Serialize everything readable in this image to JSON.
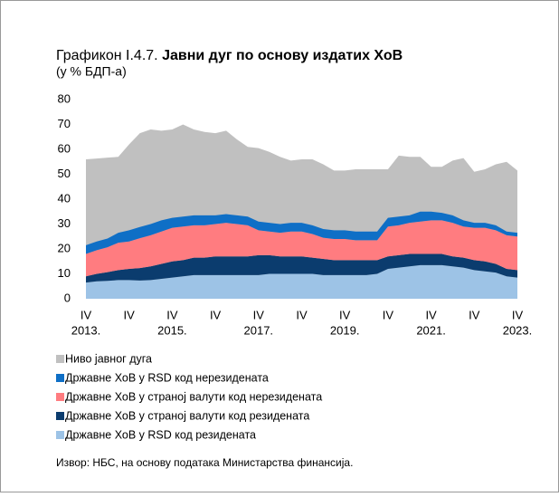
{
  "chart_data": {
    "type": "stacked_area",
    "title_prefix": "Графикон I.4.7.",
    "title": "Јавни дуг по основу издатих ХоВ",
    "subtitle": "(у % БДП-а)",
    "source": "Извор: НБС, на основу података Министарства финансија.",
    "categories": [
      "IV",
      null,
      null,
      null,
      "IV",
      null,
      null,
      null,
      "IV",
      null,
      null,
      null,
      "IV",
      null,
      null,
      null,
      "IV",
      null,
      null,
      null,
      "IV",
      null,
      null,
      null,
      "IV",
      null,
      null,
      null,
      "IV",
      null,
      null,
      null,
      "IV",
      null,
      null,
      null,
      "IV",
      null,
      null,
      null,
      "IV"
    ],
    "year_labels": [
      "2013.",
      null,
      null,
      null,
      null,
      null,
      null,
      null,
      "2015.",
      null,
      null,
      null,
      null,
      null,
      null,
      null,
      "2017.",
      null,
      null,
      null,
      null,
      null,
      null,
      null,
      "2019.",
      null,
      null,
      null,
      null,
      null,
      null,
      null,
      "2021.",
      null,
      null,
      null,
      null,
      null,
      null,
      null,
      "2023."
    ],
    "ylim": [
      0,
      80
    ],
    "yticks": [
      0,
      10,
      20,
      30,
      40,
      50,
      60,
      70,
      80
    ],
    "series": [
      {
        "name": "Ниво јавног дуга",
        "color": "#c0c0c0",
        "stack": false,
        "values": [
          56,
          56.3,
          56.7,
          57,
          62,
          66.5,
          68,
          67.5,
          68,
          70,
          68,
          67,
          66.5,
          67.5,
          64,
          61,
          60.5,
          59,
          57,
          55.5,
          56,
          56,
          54,
          51.5,
          51.5,
          52,
          52,
          52,
          52,
          57.5,
          57,
          57,
          53,
          53,
          55.5,
          56.5,
          51,
          52,
          54,
          55,
          51.5
        ]
      },
      {
        "name": "Државне ХоВ у RSD код нерезидената",
        "color": "#0f6fc6",
        "stack": true,
        "values": [
          3.5,
          3.5,
          3.5,
          4,
          4.5,
          4.5,
          4.5,
          4.5,
          4,
          4,
          4,
          4,
          3.5,
          3.5,
          3.5,
          3.5,
          3.5,
          3.5,
          3.5,
          3.5,
          3.5,
          3.5,
          3.5,
          3.5,
          3.5,
          3.5,
          3.5,
          3.5,
          3.5,
          3.5,
          3,
          4,
          3.5,
          3,
          3,
          2.5,
          2,
          2,
          2,
          1.5,
          1.5
        ]
      },
      {
        "name": "Државне ХоВ у страној валути код нерезидената",
        "color": "#ff7c80",
        "stack": true,
        "values": [
          9,
          9.5,
          10,
          11,
          11,
          12,
          12.5,
          13,
          13.5,
          13.5,
          13,
          13,
          13,
          13.5,
          13,
          12.5,
          10,
          9.5,
          9.5,
          10,
          10,
          9.5,
          8.5,
          8.5,
          8.5,
          8,
          8,
          8,
          12,
          12,
          12.5,
          13,
          13.5,
          13.5,
          13.5,
          12.5,
          13,
          13.5,
          13.5,
          13.5,
          13.5
        ]
      },
      {
        "name": "Државне ХоВ у страној валути код резидената",
        "color": "#0b3c6e",
        "stack": true,
        "values": [
          2.5,
          3,
          3.5,
          4,
          4.5,
          5,
          5.5,
          6,
          6.5,
          6.5,
          7,
          7,
          7.5,
          7.5,
          7.5,
          7.5,
          8,
          7.5,
          7,
          7,
          7,
          6.5,
          6.5,
          6,
          6,
          6,
          6,
          5.5,
          5,
          5,
          5,
          4.5,
          4.5,
          4.5,
          4,
          4,
          4,
          4,
          3.5,
          3,
          3
        ]
      },
      {
        "name": "Државне ХоВ у RSD код резидената",
        "color": "#9dc3e6",
        "stack": true,
        "values": [
          6.5,
          7,
          7.2,
          7.5,
          7.5,
          7.3,
          7.5,
          8,
          8.5,
          9,
          9.5,
          9.5,
          9.5,
          9.5,
          9.5,
          9.5,
          9.5,
          10,
          10,
          10,
          10,
          10,
          9.5,
          9.5,
          9.5,
          9.5,
          9.5,
          10,
          12,
          12.5,
          13,
          13.5,
          13.5,
          13.5,
          13,
          12.5,
          11.5,
          11,
          10.5,
          9,
          8.5
        ]
      }
    ]
  }
}
